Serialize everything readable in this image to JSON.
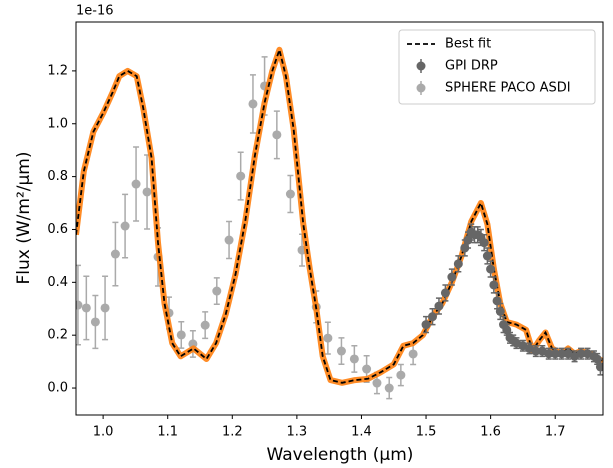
{
  "chart_data": {
    "type": "errorbar-line",
    "x_label": "Wavelength (μm)",
    "y_label": "Flux (W/m²/μm)",
    "y_offset_label": "1e-16",
    "xlim": [
      0.958,
      1.774
    ],
    "ylim": [
      -0.102,
      1.385
    ],
    "xticks": [
      {
        "value": 1.0,
        "label": "1.0"
      },
      1.1,
      1.2,
      1.3,
      1.4,
      1.5,
      1.6,
      1.7
    ],
    "yticks": [
      {
        "value": 0,
        "label": "0.0"
      },
      0.2,
      0.4,
      0.6,
      0.8,
      {
        "value": 1.0,
        "label": "1.0"
      },
      1.2
    ],
    "legend": "upper right",
    "grid": false,
    "series": [
      {
        "name": "Best fit",
        "kind": "line",
        "color": "#000000",
        "band_color": "#ff7f0e",
        "x": [
          0.958,
          0.97,
          0.985,
          1.0,
          1.015,
          1.025,
          1.038,
          1.052,
          1.062,
          1.075,
          1.085,
          1.095,
          1.107,
          1.12,
          1.14,
          1.16,
          1.175,
          1.19,
          1.205,
          1.22,
          1.235,
          1.25,
          1.262,
          1.273,
          1.283,
          1.295,
          1.31,
          1.32,
          1.33,
          1.34,
          1.352,
          1.37,
          1.39,
          1.41,
          1.43,
          1.45,
          1.465,
          1.48,
          1.495,
          1.51,
          1.525,
          1.54,
          1.555,
          1.57,
          1.585,
          1.595,
          1.605,
          1.615,
          1.625,
          1.64,
          1.655,
          1.665,
          1.675,
          1.685,
          1.695,
          1.71,
          1.72,
          1.73,
          1.74,
          1.755,
          1.774
        ],
        "values": [
          0.58,
          0.82,
          0.97,
          1.04,
          1.12,
          1.18,
          1.2,
          1.18,
          1.06,
          0.87,
          0.55,
          0.32,
          0.17,
          0.12,
          0.15,
          0.11,
          0.17,
          0.28,
          0.43,
          0.63,
          0.88,
          1.08,
          1.2,
          1.28,
          1.18,
          0.98,
          0.62,
          0.45,
          0.3,
          0.12,
          0.03,
          0.02,
          0.03,
          0.035,
          0.06,
          0.09,
          0.16,
          0.17,
          0.2,
          0.27,
          0.32,
          0.4,
          0.5,
          0.63,
          0.7,
          0.62,
          0.45,
          0.32,
          0.25,
          0.24,
          0.22,
          0.14,
          0.18,
          0.21,
          0.15,
          0.13,
          0.15,
          0.13,
          0.14,
          0.13,
          0.1
        ]
      },
      {
        "name": "GPI DRP",
        "kind": "points",
        "color": "#666666",
        "x": [
          1.5,
          1.51,
          1.52,
          1.53,
          1.54,
          1.55,
          1.56,
          1.565,
          1.57,
          1.575,
          1.58,
          1.585,
          1.59,
          1.595,
          1.6,
          1.605,
          1.61,
          1.615,
          1.62,
          1.625,
          1.63,
          1.635,
          1.64,
          1.65,
          1.66,
          1.67,
          1.68,
          1.69,
          1.7,
          1.71,
          1.72,
          1.73,
          1.74,
          1.75,
          1.76,
          1.765,
          1.77
        ],
        "values": [
          0.24,
          0.27,
          0.31,
          0.36,
          0.42,
          0.47,
          0.53,
          0.56,
          0.59,
          0.58,
          0.58,
          0.57,
          0.55,
          0.5,
          0.45,
          0.39,
          0.33,
          0.29,
          0.24,
          0.22,
          0.19,
          0.18,
          0.17,
          0.16,
          0.15,
          0.14,
          0.14,
          0.13,
          0.13,
          0.13,
          0.13,
          0.12,
          0.13,
          0.13,
          0.12,
          0.11,
          0.08
        ],
        "errors": [
          0.03,
          0.03,
          0.03,
          0.03,
          0.03,
          0.03,
          0.03,
          0.03,
          0.03,
          0.03,
          0.03,
          0.03,
          0.03,
          0.03,
          0.03,
          0.03,
          0.03,
          0.03,
          0.03,
          0.02,
          0.02,
          0.02,
          0.02,
          0.02,
          0.02,
          0.02,
          0.02,
          0.02,
          0.02,
          0.02,
          0.02,
          0.02,
          0.02,
          0.02,
          0.02,
          0.02,
          0.03
        ]
      },
      {
        "name": "SPHERE PACO ASDI",
        "kind": "points",
        "color": "#aaaaaa",
        "x": [
          0.961,
          0.974,
          0.988,
          1.003,
          1.019,
          1.034,
          1.051,
          1.068,
          1.085,
          1.102,
          1.121,
          1.139,
          1.158,
          1.176,
          1.195,
          1.213,
          1.232,
          1.25,
          1.269,
          1.29,
          1.308,
          1.33,
          1.348,
          1.369,
          1.389,
          1.408,
          1.424,
          1.443,
          1.461,
          1.48
        ],
        "values": [
          0.314,
          0.303,
          0.25,
          0.303,
          0.507,
          0.613,
          0.772,
          0.742,
          0.496,
          0.284,
          0.201,
          0.167,
          0.238,
          0.367,
          0.56,
          0.802,
          1.075,
          1.143,
          0.958,
          0.734,
          0.522,
          0.307,
          0.189,
          0.14,
          0.11,
          0.072,
          0.019,
          0.0,
          0.049,
          0.129
        ],
        "errors": [
          0.15,
          0.12,
          0.1,
          0.12,
          0.12,
          0.12,
          0.14,
          0.14,
          0.11,
          0.06,
          0.05,
          0.05,
          0.05,
          0.05,
          0.07,
          0.09,
          0.11,
          0.11,
          0.09,
          0.07,
          0.06,
          0.06,
          0.06,
          0.05,
          0.05,
          0.05,
          0.04,
          0.04,
          0.04,
          0.04
        ]
      }
    ]
  }
}
